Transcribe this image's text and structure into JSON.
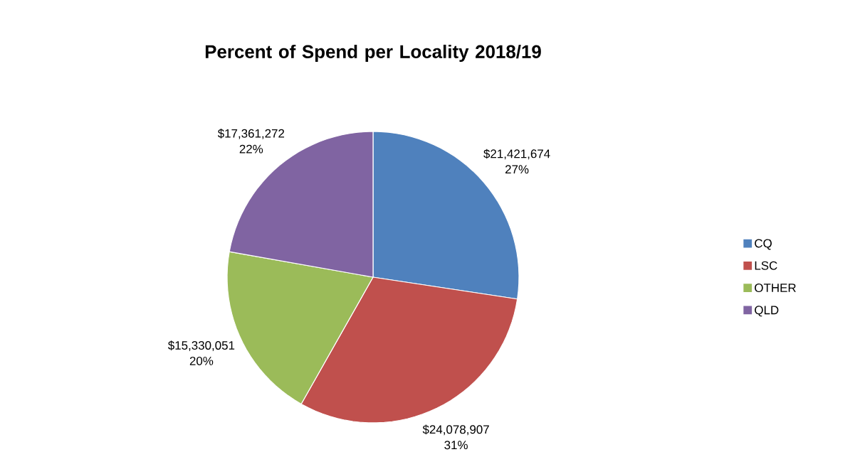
{
  "chart_data": {
    "type": "pie",
    "title": "Percent of Spend per Locality 2018/19",
    "categories": [
      "CQ",
      "LSC",
      "OTHER",
      "QLD"
    ],
    "values": [
      21421674,
      24078907,
      15330051,
      17361272
    ],
    "colors": [
      "#4f81bd",
      "#c0504d",
      "#9bbb59",
      "#8064a2"
    ],
    "value_labels": [
      "$21,421,674 27%",
      "$24,078,907 31%",
      "$15,330,051 20%",
      "$17,361,272 22%"
    ],
    "legend": "right"
  }
}
